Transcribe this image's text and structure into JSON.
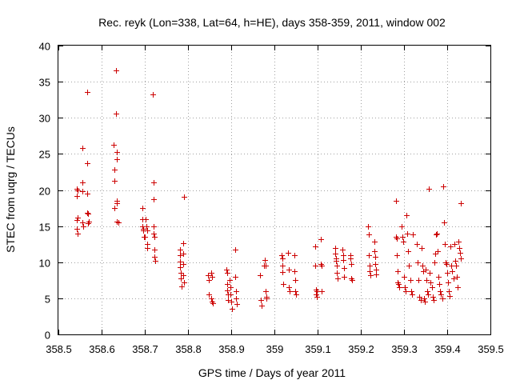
{
  "chart_data": {
    "type": "scatter",
    "title": "Rec. reyk (Lon=338, Lat=64, h=HE), days 358-359, 2011, window 002",
    "xlabel": "GPS time / Days of year 2011",
    "ylabel": "STEC from uqrg / TECUs",
    "xlim": [
      358.5,
      359.5
    ],
    "ylim": [
      0,
      40
    ],
    "xticks": [
      "358.5",
      "358.6",
      "358.7",
      "358.8",
      "358.9",
      "359",
      "359.1",
      "359.2",
      "359.3",
      "359.4",
      "359.5"
    ],
    "yticks": [
      "0",
      "5",
      "10",
      "15",
      "20",
      "25",
      "30",
      "35",
      "40"
    ],
    "grid": true,
    "marker": "+",
    "marker_color": "#cc0000",
    "x": [
      358.542,
      358.542,
      358.542,
      358.542,
      358.544,
      358.545,
      358.545,
      358.555,
      358.556,
      358.556,
      358.556,
      358.557,
      358.566,
      358.566,
      358.566,
      358.567,
      358.568,
      358.569,
      358.57,
      358.628,
      358.629,
      358.629,
      358.63,
      358.634,
      358.634,
      358.635,
      358.635,
      358.636,
      358.636,
      358.636,
      358.638,
      358.694,
      358.695,
      358.695,
      358.697,
      358.697,
      358.699,
      358.7,
      358.702,
      358.703,
      358.705,
      358.705,
      358.706,
      358.718,
      358.72,
      358.72,
      358.721,
      358.721,
      358.722,
      358.723,
      358.723,
      358.724,
      358.781,
      358.782,
      358.782,
      358.782,
      358.783,
      358.784,
      358.785,
      358.788,
      358.788,
      358.789,
      358.789,
      358.79,
      358.791,
      358.846,
      358.848,
      358.849,
      358.853,
      358.854,
      358.855,
      358.856,
      358.857,
      358.889,
      358.89,
      358.89,
      358.891,
      358.892,
      358.893,
      358.897,
      358.898,
      358.899,
      358.9,
      358.902,
      358.91,
      358.91,
      358.911,
      358.912,
      358.913,
      358.967,
      358.968,
      358.97,
      358.975,
      358.978,
      358.979,
      358.98,
      358.981,
      358.982,
      359.017,
      359.018,
      359.018,
      359.019,
      359.02,
      359.031,
      359.033,
      359.034,
      359.035,
      359.046,
      359.047,
      359.048,
      359.049,
      359.05,
      359.094,
      359.095,
      359.096,
      359.097,
      359.098,
      359.099,
      359.107,
      359.108,
      359.109,
      359.11,
      359.14,
      359.141,
      359.142,
      359.143,
      359.144,
      359.145,
      359.146,
      359.158,
      359.159,
      359.16,
      359.161,
      359.162,
      359.175,
      359.176,
      359.177,
      359.178,
      359.179,
      359.217,
      359.218,
      359.219,
      359.22,
      359.221,
      359.222,
      359.231,
      359.232,
      359.233,
      359.234,
      359.235,
      359.236,
      359.281,
      359.282,
      359.283,
      359.284,
      359.285,
      359.286,
      359.287,
      359.288,
      359.294,
      359.296,
      359.298,
      359.3,
      359.302,
      359.304,
      359.306,
      359.308,
      359.31,
      359.312,
      359.314,
      359.316,
      359.318,
      359.32,
      359.33,
      359.332,
      359.334,
      359.336,
      359.338,
      359.34,
      359.342,
      359.344,
      359.346,
      359.348,
      359.35,
      359.352,
      359.354,
      359.356,
      359.358,
      359.36,
      359.362,
      359.364,
      359.366,
      359.368,
      359.37,
      359.372,
      359.374,
      359.376,
      359.378,
      359.38,
      359.382,
      359.384,
      359.386,
      359.388,
      359.39,
      359.392,
      359.394,
      359.396,
      359.398,
      359.4,
      359.402,
      359.404,
      359.406,
      359.408,
      359.41,
      359.412,
      359.414,
      359.416,
      359.418,
      359.42,
      359.422,
      359.424,
      359.426,
      359.428,
      359.43,
      359.431,
      359.432
    ],
    "y": [
      20.2,
      19.2,
      15.8,
      14.6,
      14.0,
      20.0,
      16.2,
      25.8,
      21.0,
      19.8,
      15.5,
      15.0,
      33.6,
      23.7,
      19.5,
      16.8,
      16.7,
      15.4,
      15.6,
      26.3,
      22.8,
      21.3,
      17.5,
      36.6,
      30.6,
      25.3,
      24.3,
      18.5,
      18.2,
      15.6,
      15.5,
      17.5,
      16.0,
      15.0,
      14.6,
      14.4,
      13.5,
      13.5,
      16.0,
      15.0,
      12.5,
      12.0,
      14.4,
      33.2,
      21.0,
      18.7,
      15.0,
      14.0,
      13.5,
      11.8,
      10.7,
      10.2,
      11.8,
      11.0,
      10.1,
      9.3,
      8.5,
      7.8,
      6.6,
      12.6,
      11.2,
      9.8,
      8.2,
      7.2,
      19.1,
      8.2,
      7.5,
      5.5,
      5.0,
      8.5,
      8.0,
      4.5,
      4.3,
      9.0,
      8.5,
      7.0,
      6.1,
      5.5,
      4.8,
      7.5,
      6.5,
      5.5,
      4.5,
      3.6,
      11.8,
      8.0,
      6.0,
      5.0,
      4.2,
      8.2,
      4.8,
      4.0,
      9.5,
      10.3,
      9.5,
      6.0,
      5.2,
      5.0,
      11.0,
      10.5,
      9.5,
      8.6,
      7.0,
      11.3,
      9.0,
      6.5,
      6.0,
      11.0,
      8.8,
      7.5,
      6.0,
      5.5,
      12.2,
      9.5,
      6.2,
      5.5,
      5.2,
      6.0,
      13.2,
      9.8,
      9.5,
      6.0,
      12.0,
      11.2,
      10.5,
      10.2,
      9.5,
      8.5,
      7.8,
      11.8,
      11.0,
      10.3,
      9.2,
      8.0,
      11.0,
      10.5,
      9.8,
      7.8,
      7.5,
      15.0,
      13.8,
      11.0,
      9.5,
      8.7,
      8.2,
      12.8,
      11.5,
      10.8,
      9.8,
      9.0,
      8.3,
      18.5,
      13.5,
      13.3,
      11.0,
      8.8,
      7.2,
      7.0,
      6.5,
      15.0,
      13.5,
      12.8,
      8.0,
      6.5,
      6.0,
      16.5,
      14.0,
      11.5,
      9.5,
      7.5,
      6.0,
      5.5,
      13.8,
      12.5,
      10.0,
      7.5,
      5.2,
      4.8,
      12.0,
      9.5,
      8.8,
      5.0,
      4.5,
      9.0,
      7.5,
      6.0,
      5.5,
      20.2,
      8.5,
      7.2,
      6.5,
      5.2,
      4.8,
      10.0,
      11.2,
      13.8,
      14.0,
      11.5,
      8.0,
      7.0,
      6.0,
      5.5,
      5.0,
      20.5,
      15.5,
      12.5,
      10.0,
      9.8,
      8.5,
      7.2,
      6.0,
      5.3,
      12.2,
      9.5,
      8.8,
      7.8,
      12.5,
      10.2,
      9.5,
      8.0,
      6.5,
      12.8,
      12.0,
      11.3,
      10.5,
      18.2
    ]
  }
}
